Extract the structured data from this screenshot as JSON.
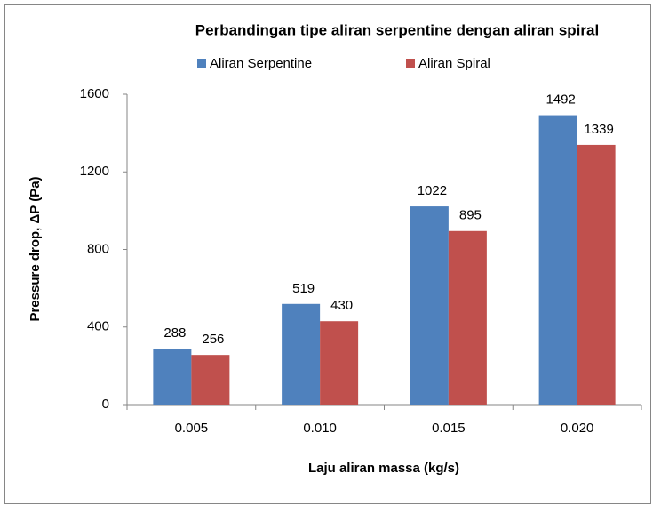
{
  "chart_data": {
    "type": "bar",
    "title": "Perbandingan tipe aliran serpentine dengan aliran spiral",
    "x_label": "Laju aliran massa (kg/s)",
    "y_label": "Pressure drop, ΔP (Pa)",
    "categories": [
      "0.005",
      "0.010",
      "0.015",
      "0.020"
    ],
    "series": [
      {
        "name": "Aliran Serpentine",
        "color": "#4f81bd",
        "values": [
          288,
          519,
          1022,
          1492
        ]
      },
      {
        "name": "Aliran Spiral",
        "color": "#c0504d",
        "values": [
          256,
          430,
          895,
          1339
        ]
      }
    ],
    "ylim": [
      0,
      1600
    ],
    "yticks": [
      0,
      400,
      800,
      1200,
      1600
    ],
    "grid": false,
    "legend": "top"
  }
}
